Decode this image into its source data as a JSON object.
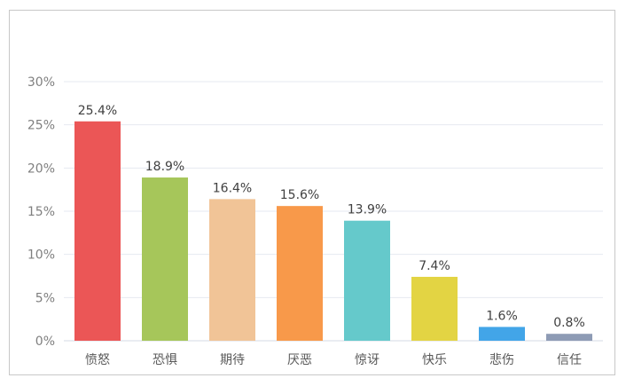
{
  "chart_data": {
    "type": "bar",
    "categories": [
      "愤怒",
      "恐惧",
      "期待",
      "厌恶",
      "惊讶",
      "快乐",
      "悲伤",
      "信任"
    ],
    "values": [
      25.4,
      18.9,
      16.4,
      15.6,
      13.9,
      7.4,
      1.6,
      0.8
    ],
    "value_labels": [
      "25.4%",
      "18.9%",
      "16.4%",
      "15.6%",
      "13.9%",
      "7.4%",
      "1.6%",
      "0.8%"
    ],
    "colors": [
      "#eb5656",
      "#a6c65a",
      "#f1c497",
      "#f8994a",
      "#65c9cb",
      "#e3d443",
      "#42a5e8",
      "#8e9bb5"
    ],
    "y_ticks": [
      "0%",
      "5%",
      "10%",
      "15%",
      "20%",
      "25%",
      "30%"
    ],
    "ylim": [
      0,
      30
    ],
    "grid": true,
    "title": "",
    "xlabel": "",
    "ylabel": ""
  }
}
